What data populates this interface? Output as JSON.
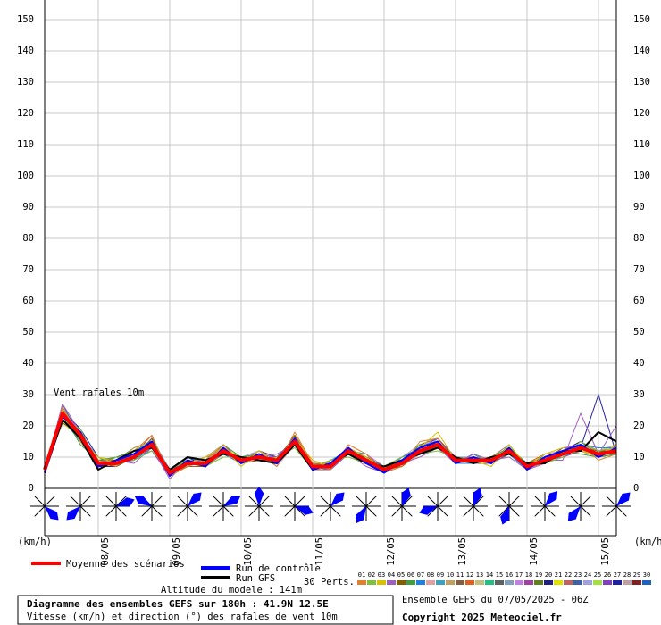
{
  "chart_data": {
    "type": "line",
    "annotation": "Vent rafales 10m",
    "y_label": "(km/h)",
    "x": [
      null,
      null,
      null,
      "08/05",
      null,
      null,
      null,
      "09/05",
      null,
      null,
      null,
      "10/05",
      null,
      null,
      null,
      "11/05",
      null,
      null,
      null,
      "12/05",
      null,
      null,
      null,
      "13/05",
      null,
      null,
      null,
      "14/05",
      null,
      null,
      null,
      "15/05",
      null
    ],
    "ylim": [
      0,
      150
    ],
    "yticks": [
      0,
      10,
      20,
      30,
      40,
      50,
      60,
      70,
      80,
      90,
      100,
      110,
      120,
      130,
      140,
      150
    ],
    "grid": true,
    "directions": [
      135,
      225,
      70,
      300,
      45,
      60,
      0,
      110,
      45,
      210,
      20,
      250,
      20,
      200,
      40,
      220,
      45
    ],
    "series": [
      {
        "name": "Moyenne des scénarios",
        "color": "#ff0000",
        "width": 4,
        "values": [
          6,
          24,
          17,
          8,
          8,
          10,
          14,
          5,
          8,
          8,
          12,
          9,
          10,
          9,
          15,
          7,
          7,
          12,
          9,
          6,
          8,
          12,
          14,
          9,
          9,
          9,
          12,
          7,
          9,
          11,
          13,
          11,
          12
        ]
      },
      {
        "name": "Run de contrôle",
        "color": "#0000ff",
        "width": 2,
        "values": [
          5,
          23,
          18,
          7,
          9,
          11,
          15,
          4,
          9,
          7,
          13,
          8,
          11,
          8,
          16,
          6,
          8,
          13,
          8,
          5,
          9,
          13,
          15,
          8,
          10,
          8,
          13,
          6,
          10,
          12,
          14,
          10,
          13
        ]
      },
      {
        "name": "Run GFS",
        "color": "#000000",
        "width": 2,
        "values": [
          5,
          22,
          16,
          6,
          9,
          12,
          13,
          6,
          10,
          9,
          11,
          10,
          9,
          8,
          14,
          6,
          8,
          11,
          8,
          7,
          9,
          11,
          13,
          10,
          8,
          10,
          11,
          8,
          8,
          12,
          12,
          18,
          15
        ]
      },
      {
        "name": "01",
        "color": "#e08030",
        "width": 1,
        "values": [
          5,
          26,
          15,
          9,
          7,
          12,
          17,
          4,
          7,
          9,
          14,
          8,
          11,
          7,
          18,
          8,
          6,
          14,
          11,
          5,
          7,
          15,
          16,
          8,
          10,
          8,
          13,
          6,
          10,
          12,
          14,
          9,
          11
        ]
      },
      {
        "name": "02",
        "color": "#80c040",
        "width": 1,
        "values": [
          6,
          22,
          19,
          7,
          10,
          9,
          12,
          6,
          9,
          7,
          10,
          10,
          9,
          10,
          13,
          6,
          9,
          10,
          8,
          7,
          10,
          11,
          12,
          10,
          8,
          10,
          11,
          8,
          8,
          10,
          15,
          12,
          13
        ]
      },
      {
        "name": "03",
        "color": "#d8c000",
        "width": 1,
        "values": [
          7,
          25,
          16,
          10,
          8,
          11,
          15,
          5,
          8,
          10,
          13,
          7,
          12,
          8,
          16,
          9,
          7,
          13,
          10,
          6,
          9,
          13,
          18,
          9,
          9,
          7,
          14,
          7,
          11,
          13,
          12,
          10,
          14
        ]
      },
      {
        "name": "04",
        "color": "#a060c0",
        "width": 1,
        "values": [
          5,
          27,
          18,
          6,
          9,
          8,
          13,
          3,
          9,
          8,
          11,
          9,
          10,
          11,
          14,
          7,
          6,
          11,
          7,
          5,
          8,
          10,
          13,
          8,
          11,
          9,
          10,
          6,
          9,
          9,
          24,
          11,
          20
        ]
      },
      {
        "name": "05",
        "color": "#806000",
        "width": 1,
        "values": [
          6,
          21,
          17,
          8,
          7,
          10,
          16,
          5,
          8,
          7,
          12,
          8,
          9,
          9,
          17,
          6,
          8,
          13,
          9,
          6,
          7,
          12,
          15,
          9,
          10,
          8,
          12,
          7,
          8,
          11,
          13,
          12,
          12
        ]
      },
      {
        "name": "06",
        "color": "#40a040",
        "width": 1,
        "values": [
          6,
          24,
          14,
          9,
          10,
          12,
          15,
          6,
          7,
          9,
          14,
          10,
          11,
          8,
          15,
          8,
          7,
          12,
          10,
          5,
          8,
          14,
          13,
          10,
          9,
          10,
          13,
          8,
          10,
          12,
          11,
          10,
          11
        ]
      },
      {
        "name": "07",
        "color": "#2080e0",
        "width": 1,
        "values": [
          5,
          23,
          18,
          7,
          8,
          9,
          13,
          4,
          10,
          8,
          11,
          8,
          10,
          10,
          16,
          7,
          6,
          11,
          9,
          7,
          9,
          11,
          14,
          8,
          8,
          9,
          11,
          6,
          9,
          10,
          14,
          13,
          13
        ]
      },
      {
        "name": "08",
        "color": "#e0a0a0",
        "width": 1,
        "values": [
          7,
          26,
          16,
          8,
          9,
          11,
          14,
          5,
          8,
          10,
          13,
          9,
          12,
          7,
          14,
          6,
          8,
          13,
          8,
          6,
          8,
          13,
          15,
          9,
          9,
          8,
          12,
          7,
          9,
          11,
          13,
          11,
          12
        ]
      },
      {
        "name": "09",
        "color": "#40a0c0",
        "width": 1,
        "values": [
          6,
          24,
          17,
          10,
          7,
          10,
          12,
          6,
          9,
          8,
          12,
          10,
          9,
          9,
          15,
          8,
          7,
          12,
          11,
          5,
          10,
          12,
          14,
          10,
          10,
          9,
          13,
          8,
          8,
          12,
          12,
          10,
          12
        ]
      },
      {
        "name": "10",
        "color": "#c0a060",
        "width": 1,
        "values": [
          5,
          22,
          19,
          7,
          8,
          13,
          15,
          4,
          8,
          9,
          13,
          8,
          10,
          10,
          16,
          7,
          9,
          11,
          9,
          6,
          7,
          11,
          13,
          8,
          9,
          10,
          12,
          7,
          10,
          10,
          14,
          12,
          13
        ]
      },
      {
        "name": "11",
        "color": "#806040",
        "width": 1,
        "values": [
          6,
          25,
          15,
          9,
          9,
          9,
          16,
          5,
          7,
          7,
          11,
          9,
          11,
          8,
          14,
          6,
          6,
          13,
          10,
          7,
          8,
          14,
          16,
          9,
          8,
          8,
          11,
          6,
          9,
          13,
          13,
          11,
          11
        ]
      },
      {
        "name": "12",
        "color": "#e06020",
        "width": 1,
        "values": [
          7,
          24,
          17,
          8,
          10,
          10,
          13,
          6,
          9,
          8,
          12,
          10,
          9,
          9,
          17,
          8,
          8,
          12,
          8,
          5,
          9,
          12,
          14,
          10,
          10,
          9,
          13,
          8,
          11,
          11,
          12,
          10,
          12
        ]
      },
      {
        "name": "13",
        "color": "#c0c080",
        "width": 1,
        "values": [
          6,
          23,
          18,
          7,
          8,
          11,
          14,
          5,
          8,
          10,
          14,
          8,
          10,
          10,
          15,
          7,
          7,
          11,
          9,
          6,
          8,
          13,
          15,
          9,
          9,
          10,
          12,
          7,
          8,
          12,
          13,
          12,
          14
        ]
      },
      {
        "name": "14",
        "color": "#20c080",
        "width": 1,
        "values": [
          5,
          26,
          16,
          9,
          7,
          10,
          15,
          4,
          10,
          9,
          11,
          9,
          12,
          8,
          16,
          6,
          9,
          12,
          10,
          7,
          7,
          12,
          13,
          8,
          11,
          8,
          14,
          6,
          9,
          10,
          14,
          11,
          12
        ]
      },
      {
        "name": "15",
        "color": "#606060",
        "width": 1,
        "values": [
          6,
          24,
          17,
          8,
          9,
          12,
          13,
          5,
          8,
          7,
          12,
          10,
          9,
          9,
          14,
          8,
          6,
          13,
          9,
          5,
          9,
          11,
          14,
          10,
          9,
          9,
          12,
          8,
          10,
          11,
          12,
          10,
          11
        ]
      },
      {
        "name": "16",
        "color": "#80a0c0",
        "width": 1,
        "values": [
          7,
          22,
          15,
          10,
          8,
          9,
          16,
          6,
          9,
          8,
          13,
          8,
          11,
          7,
          17,
          7,
          8,
          12,
          8,
          6,
          8,
          14,
          15,
          9,
          8,
          10,
          11,
          7,
          9,
          12,
          13,
          12,
          13
        ]
      },
      {
        "name": "17",
        "color": "#c080e0",
        "width": 1,
        "values": [
          6,
          25,
          18,
          7,
          10,
          11,
          14,
          5,
          7,
          10,
          12,
          9,
          10,
          10,
          15,
          6,
          7,
          11,
          11,
          7,
          10,
          12,
          13,
          8,
          10,
          8,
          13,
          6,
          8,
          13,
          14,
          11,
          12
        ]
      },
      {
        "name": "18",
        "color": "#a040a0",
        "width": 1,
        "values": [
          5,
          23,
          16,
          9,
          8,
          10,
          12,
          4,
          8,
          9,
          11,
          10,
          9,
          9,
          16,
          8,
          8,
          13,
          9,
          5,
          8,
          13,
          16,
          10,
          9,
          9,
          12,
          8,
          10,
          10,
          12,
          10,
          14
        ]
      },
      {
        "name": "19",
        "color": "#608020",
        "width": 1,
        "values": [
          6,
          26,
          17,
          8,
          9,
          13,
          15,
          6,
          9,
          8,
          14,
          8,
          12,
          8,
          14,
          7,
          6,
          12,
          10,
          6,
          9,
          11,
          14,
          9,
          9,
          10,
          11,
          7,
          9,
          11,
          13,
          12,
          11
        ]
      },
      {
        "name": "20",
        "color": "#202080",
        "width": 1,
        "values": [
          7,
          24,
          19,
          7,
          7,
          10,
          14,
          5,
          10,
          7,
          12,
          9,
          10,
          10,
          16,
          6,
          9,
          11,
          8,
          7,
          7,
          12,
          15,
          8,
          11,
          8,
          13,
          6,
          8,
          12,
          15,
          11,
          12
        ]
      },
      {
        "name": "21",
        "color": "#e0e000",
        "width": 1,
        "values": [
          6,
          21,
          16,
          10,
          9,
          9,
          13,
          5,
          8,
          9,
          13,
          10,
          11,
          9,
          15,
          8,
          7,
          13,
          9,
          5,
          8,
          14,
          13,
          10,
          10,
          9,
          12,
          8,
          10,
          10,
          12,
          10,
          13
        ]
      },
      {
        "name": "22",
        "color": "#c06060",
        "width": 1,
        "values": [
          5,
          25,
          17,
          8,
          10,
          11,
          17,
          4,
          7,
          10,
          11,
          8,
          9,
          8,
          17,
          7,
          8,
          12,
          11,
          6,
          9,
          12,
          14,
          9,
          9,
          10,
          14,
          7,
          9,
          13,
          13,
          11,
          12
        ]
      },
      {
        "name": "23",
        "color": "#4060a0",
        "width": 1,
        "values": [
          6,
          24,
          15,
          9,
          8,
          12,
          14,
          6,
          9,
          8,
          12,
          9,
          10,
          10,
          14,
          6,
          6,
          11,
          10,
          7,
          10,
          13,
          15,
          8,
          8,
          8,
          11,
          6,
          11,
          11,
          14,
          12,
          11
        ]
      },
      {
        "name": "24",
        "color": "#a0a0e0",
        "width": 1,
        "values": [
          7,
          22,
          18,
          7,
          9,
          10,
          15,
          5,
          10,
          9,
          13,
          10,
          12,
          9,
          16,
          8,
          8,
          13,
          8,
          5,
          8,
          11,
          16,
          10,
          10,
          9,
          12,
          8,
          9,
          12,
          13,
          10,
          13
        ]
      },
      {
        "name": "25",
        "color": "#a0e040",
        "width": 1,
        "values": [
          6,
          26,
          16,
          9,
          7,
          11,
          13,
          4,
          8,
          7,
          12,
          8,
          10,
          8,
          15,
          7,
          7,
          12,
          9,
          6,
          7,
          12,
          14,
          9,
          9,
          10,
          13,
          7,
          8,
          10,
          12,
          11,
          12
        ]
      },
      {
        "name": "26",
        "color": "#8040c0",
        "width": 1,
        "values": [
          5,
          23,
          17,
          8,
          10,
          9,
          16,
          6,
          8,
          10,
          14,
          9,
          11,
          10,
          15,
          6,
          9,
          11,
          10,
          7,
          9,
          13,
          13,
          8,
          10,
          8,
          12,
          6,
          10,
          11,
          14,
          12,
          14
        ]
      },
      {
        "name": "27",
        "color": "#2020a0",
        "width": 1,
        "values": [
          6,
          25,
          19,
          10,
          8,
          12,
          14,
          5,
          9,
          8,
          11,
          10,
          9,
          9,
          17,
          8,
          6,
          13,
          9,
          5,
          8,
          12,
          15,
          10,
          9,
          9,
          11,
          8,
          9,
          13,
          13,
          30,
          11
        ]
      },
      {
        "name": "28",
        "color": "#c0a0a0",
        "width": 1,
        "values": [
          7,
          24,
          15,
          7,
          9,
          10,
          13,
          5,
          7,
          9,
          13,
          8,
          10,
          8,
          14,
          7,
          8,
          12,
          11,
          6,
          10,
          14,
          14,
          9,
          8,
          10,
          13,
          7,
          11,
          12,
          12,
          10,
          12
        ]
      },
      {
        "name": "29",
        "color": "#802020",
        "width": 1,
        "values": [
          6,
          22,
          18,
          9,
          8,
          11,
          15,
          4,
          10,
          8,
          12,
          9,
          12,
          10,
          16,
          6,
          7,
          11,
          8,
          7,
          8,
          11,
          13,
          8,
          11,
          8,
          12,
          6,
          8,
          11,
          14,
          12,
          13
        ]
      },
      {
        "name": "30",
        "color": "#2060c0",
        "width": 1,
        "values": [
          5,
          27,
          16,
          8,
          9,
          10,
          14,
          6,
          8,
          10,
          12,
          10,
          10,
          9,
          15,
          8,
          8,
          13,
          10,
          5,
          9,
          13,
          15,
          10,
          9,
          9,
          11,
          7,
          10,
          10,
          13,
          11,
          12
        ]
      }
    ],
    "perts_label": "30 Perts.",
    "altitude": "Altitude du modele : 141m",
    "title": "Diagramme des ensembles GEFS sur 180h : 41.9N 12.5E",
    "subtitle": "Vitesse (km/h) et direction (°) des rafales de vent 10m",
    "run_info": "Ensemble GEFS du 07/05/2025 - 06Z",
    "copyright": "Copyright 2025 Meteociel.fr"
  }
}
